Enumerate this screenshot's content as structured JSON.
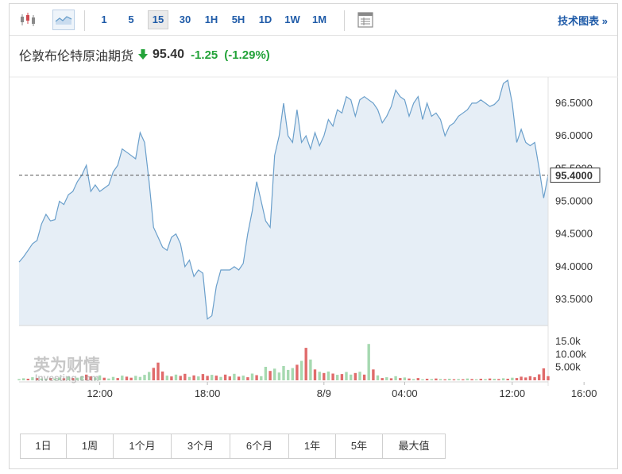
{
  "toolbar": {
    "timeframes": [
      "1",
      "5",
      "15",
      "30",
      "1H",
      "5H",
      "1D",
      "1W",
      "1M"
    ],
    "active_timeframe": "15",
    "advanced_chart_label": "技术图表 »",
    "icons": [
      "candlestick-chart-icon",
      "area-chart-icon",
      "table-view-icon"
    ]
  },
  "quote": {
    "name": "伦敦布伦特原油期货",
    "price": "95.40",
    "change": "-1.25",
    "change_pct": "(-1.29%)",
    "direction": "down",
    "arrow_color": "#24a33a"
  },
  "watermark": {
    "cn": "英为财情",
    "en": "Investing.com"
  },
  "ranges": [
    "1日",
    "1周",
    "1个月",
    "3个月",
    "6个月",
    "1年",
    "5年",
    "最大值"
  ],
  "colors": {
    "line": "#6a9fcb",
    "area": "#e6eef6",
    "vol_up": "#a6d9b0",
    "vol_down": "#e06b6b",
    "dashed": "#555555",
    "price_label_bg": "#ffffff"
  },
  "chart_data": {
    "type": "area",
    "title": "",
    "xlabel": "",
    "ylabel": "",
    "ylim": [
      93.1,
      96.9
    ],
    "y_ticks": [
      "96.5000",
      "96.0000",
      "95.5000",
      "95.0000",
      "94.5000",
      "94.0000",
      "93.5000"
    ],
    "y_tick_values": [
      96.5,
      96.0,
      95.5,
      95.0,
      94.5,
      94.0,
      93.5
    ],
    "x_ticks": [
      "12:00",
      "18:00",
      "8/9",
      "04:00",
      "12:00",
      "16:00"
    ],
    "x_tick_index": [
      18,
      42,
      68,
      86,
      110,
      126
    ],
    "current_price_label": "95.4000",
    "current_price": 95.4,
    "values": [
      94.07,
      94.15,
      94.25,
      94.35,
      94.4,
      94.65,
      94.8,
      94.7,
      94.72,
      95.0,
      94.95,
      95.1,
      95.15,
      95.3,
      95.4,
      95.55,
      95.15,
      95.25,
      95.15,
      95.2,
      95.25,
      95.45,
      95.55,
      95.8,
      95.75,
      95.7,
      95.65,
      96.05,
      95.9,
      95.3,
      94.6,
      94.45,
      94.3,
      94.25,
      94.45,
      94.5,
      94.35,
      94.0,
      94.1,
      93.85,
      93.95,
      93.9,
      93.2,
      93.25,
      93.7,
      93.95,
      93.95,
      93.95,
      94.0,
      93.95,
      94.05,
      94.5,
      94.85,
      95.3,
      95.0,
      94.7,
      94.6,
      95.7,
      96.0,
      96.5,
      96.0,
      95.9,
      96.4,
      95.9,
      96.0,
      95.8,
      96.05,
      95.85,
      96.0,
      96.25,
      96.15,
      96.4,
      96.35,
      96.6,
      96.55,
      96.3,
      96.55,
      96.6,
      96.55,
      96.5,
      96.4,
      96.2,
      96.3,
      96.45,
      96.7,
      96.6,
      96.55,
      96.3,
      96.5,
      96.6,
      96.25,
      96.5,
      96.3,
      96.35,
      96.25,
      96.0,
      96.15,
      96.2,
      96.3,
      96.35,
      96.4,
      96.5,
      96.5,
      96.55,
      96.5,
      96.45,
      96.48,
      96.55,
      96.8,
      96.85,
      96.5,
      95.9,
      96.1,
      95.9,
      95.85,
      95.9,
      95.5,
      95.05,
      95.4
    ],
    "volume_ticks": [
      "15.0k",
      "10.00k",
      "5.00k"
    ],
    "volume_tick_values": [
      15000,
      10000,
      5000
    ],
    "volume_max": 16500,
    "volume_bars": [
      {
        "i": 0,
        "v": 500,
        "d": "up"
      },
      {
        "i": 1,
        "v": 800,
        "d": "up"
      },
      {
        "i": 2,
        "v": 600,
        "d": "down"
      },
      {
        "i": 3,
        "v": 1200,
        "d": "up"
      },
      {
        "i": 4,
        "v": 900,
        "d": "down"
      },
      {
        "i": 5,
        "v": 700,
        "d": "up"
      },
      {
        "i": 6,
        "v": 600,
        "d": "up"
      },
      {
        "i": 7,
        "v": 900,
        "d": "down"
      },
      {
        "i": 8,
        "v": 700,
        "d": "up"
      },
      {
        "i": 9,
        "v": 1100,
        "d": "up"
      },
      {
        "i": 10,
        "v": 800,
        "d": "down"
      },
      {
        "i": 11,
        "v": 1400,
        "d": "up"
      },
      {
        "i": 12,
        "v": 900,
        "d": "down"
      },
      {
        "i": 13,
        "v": 1000,
        "d": "up"
      },
      {
        "i": 14,
        "v": 1600,
        "d": "up"
      },
      {
        "i": 15,
        "v": 2200,
        "d": "down"
      },
      {
        "i": 16,
        "v": 1500,
        "d": "down"
      },
      {
        "i": 17,
        "v": 1100,
        "d": "up"
      },
      {
        "i": 18,
        "v": 1900,
        "d": "up"
      },
      {
        "i": 19,
        "v": 1000,
        "d": "down"
      },
      {
        "i": 20,
        "v": 700,
        "d": "up"
      },
      {
        "i": 21,
        "v": 1300,
        "d": "up"
      },
      {
        "i": 22,
        "v": 900,
        "d": "down"
      },
      {
        "i": 23,
        "v": 1800,
        "d": "up"
      },
      {
        "i": 24,
        "v": 1400,
        "d": "down"
      },
      {
        "i": 25,
        "v": 1000,
        "d": "down"
      },
      {
        "i": 26,
        "v": 1700,
        "d": "up"
      },
      {
        "i": 27,
        "v": 1300,
        "d": "up"
      },
      {
        "i": 28,
        "v": 2100,
        "d": "up"
      },
      {
        "i": 29,
        "v": 3200,
        "d": "up"
      },
      {
        "i": 30,
        "v": 4800,
        "d": "down"
      },
      {
        "i": 31,
        "v": 6800,
        "d": "down"
      },
      {
        "i": 32,
        "v": 3400,
        "d": "down"
      },
      {
        "i": 33,
        "v": 1800,
        "d": "up"
      },
      {
        "i": 34,
        "v": 1500,
        "d": "down"
      },
      {
        "i": 35,
        "v": 2200,
        "d": "up"
      },
      {
        "i": 36,
        "v": 1700,
        "d": "down"
      },
      {
        "i": 37,
        "v": 2500,
        "d": "down"
      },
      {
        "i": 38,
        "v": 1300,
        "d": "up"
      },
      {
        "i": 39,
        "v": 1900,
        "d": "down"
      },
      {
        "i": 40,
        "v": 1500,
        "d": "up"
      },
      {
        "i": 41,
        "v": 2400,
        "d": "down"
      },
      {
        "i": 42,
        "v": 1700,
        "d": "down"
      },
      {
        "i": 43,
        "v": 2100,
        "d": "up"
      },
      {
        "i": 44,
        "v": 1800,
        "d": "down"
      },
      {
        "i": 45,
        "v": 1300,
        "d": "up"
      },
      {
        "i": 46,
        "v": 2200,
        "d": "down"
      },
      {
        "i": 47,
        "v": 1500,
        "d": "down"
      },
      {
        "i": 48,
        "v": 2500,
        "d": "up"
      },
      {
        "i": 49,
        "v": 1400,
        "d": "down"
      },
      {
        "i": 50,
        "v": 1800,
        "d": "up"
      },
      {
        "i": 51,
        "v": 1200,
        "d": "down"
      },
      {
        "i": 52,
        "v": 2600,
        "d": "up"
      },
      {
        "i": 53,
        "v": 2000,
        "d": "down"
      },
      {
        "i": 54,
        "v": 1600,
        "d": "up"
      },
      {
        "i": 55,
        "v": 5200,
        "d": "up"
      },
      {
        "i": 56,
        "v": 3600,
        "d": "down"
      },
      {
        "i": 57,
        "v": 4500,
        "d": "up"
      },
      {
        "i": 58,
        "v": 3000,
        "d": "up"
      },
      {
        "i": 59,
        "v": 5500,
        "d": "up"
      },
      {
        "i": 60,
        "v": 4000,
        "d": "up"
      },
      {
        "i": 61,
        "v": 4700,
        "d": "up"
      },
      {
        "i": 62,
        "v": 6000,
        "d": "down"
      },
      {
        "i": 63,
        "v": 7500,
        "d": "up"
      },
      {
        "i": 64,
        "v": 12500,
        "d": "down"
      },
      {
        "i": 65,
        "v": 8000,
        "d": "up"
      },
      {
        "i": 66,
        "v": 4200,
        "d": "down"
      },
      {
        "i": 67,
        "v": 3300,
        "d": "up"
      },
      {
        "i": 68,
        "v": 2800,
        "d": "down"
      },
      {
        "i": 69,
        "v": 3400,
        "d": "up"
      },
      {
        "i": 70,
        "v": 2600,
        "d": "down"
      },
      {
        "i": 71,
        "v": 2100,
        "d": "up"
      },
      {
        "i": 72,
        "v": 2400,
        "d": "down"
      },
      {
        "i": 73,
        "v": 3200,
        "d": "up"
      },
      {
        "i": 74,
        "v": 2200,
        "d": "up"
      },
      {
        "i": 75,
        "v": 2800,
        "d": "down"
      },
      {
        "i": 76,
        "v": 3300,
        "d": "up"
      },
      {
        "i": 77,
        "v": 2200,
        "d": "down"
      },
      {
        "i": 78,
        "v": 14000,
        "d": "up"
      },
      {
        "i": 79,
        "v": 4200,
        "d": "down"
      },
      {
        "i": 80,
        "v": 1900,
        "d": "up"
      },
      {
        "i": 81,
        "v": 900,
        "d": "down"
      },
      {
        "i": 82,
        "v": 1200,
        "d": "up"
      },
      {
        "i": 83,
        "v": 800,
        "d": "down"
      },
      {
        "i": 84,
        "v": 1600,
        "d": "up"
      },
      {
        "i": 85,
        "v": 900,
        "d": "down"
      },
      {
        "i": 86,
        "v": 1100,
        "d": "up"
      },
      {
        "i": 87,
        "v": 700,
        "d": "down"
      },
      {
        "i": 88,
        "v": 500,
        "d": "up"
      },
      {
        "i": 89,
        "v": 900,
        "d": "down"
      },
      {
        "i": 90,
        "v": 400,
        "d": "up"
      },
      {
        "i": 91,
        "v": 600,
        "d": "down"
      },
      {
        "i": 92,
        "v": 500,
        "d": "up"
      },
      {
        "i": 93,
        "v": 700,
        "d": "down"
      },
      {
        "i": 94,
        "v": 500,
        "d": "up"
      },
      {
        "i": 95,
        "v": 400,
        "d": "down"
      },
      {
        "i": 96,
        "v": 600,
        "d": "up"
      },
      {
        "i": 97,
        "v": 400,
        "d": "down"
      },
      {
        "i": 98,
        "v": 500,
        "d": "up"
      },
      {
        "i": 99,
        "v": 400,
        "d": "down"
      },
      {
        "i": 100,
        "v": 700,
        "d": "up"
      },
      {
        "i": 101,
        "v": 500,
        "d": "down"
      },
      {
        "i": 102,
        "v": 400,
        "d": "up"
      },
      {
        "i": 103,
        "v": 600,
        "d": "down"
      },
      {
        "i": 104,
        "v": 500,
        "d": "up"
      },
      {
        "i": 105,
        "v": 700,
        "d": "down"
      },
      {
        "i": 106,
        "v": 600,
        "d": "up"
      },
      {
        "i": 107,
        "v": 500,
        "d": "down"
      },
      {
        "i": 108,
        "v": 800,
        "d": "up"
      },
      {
        "i": 109,
        "v": 600,
        "d": "down"
      },
      {
        "i": 110,
        "v": 1000,
        "d": "up"
      },
      {
        "i": 111,
        "v": 900,
        "d": "down"
      },
      {
        "i": 112,
        "v": 1400,
        "d": "down"
      },
      {
        "i": 113,
        "v": 1100,
        "d": "down"
      },
      {
        "i": 114,
        "v": 1600,
        "d": "down"
      },
      {
        "i": 115,
        "v": 1200,
        "d": "down"
      },
      {
        "i": 116,
        "v": 2300,
        "d": "down"
      },
      {
        "i": 117,
        "v": 4600,
        "d": "down"
      },
      {
        "i": 118,
        "v": 1600,
        "d": "down"
      }
    ]
  }
}
